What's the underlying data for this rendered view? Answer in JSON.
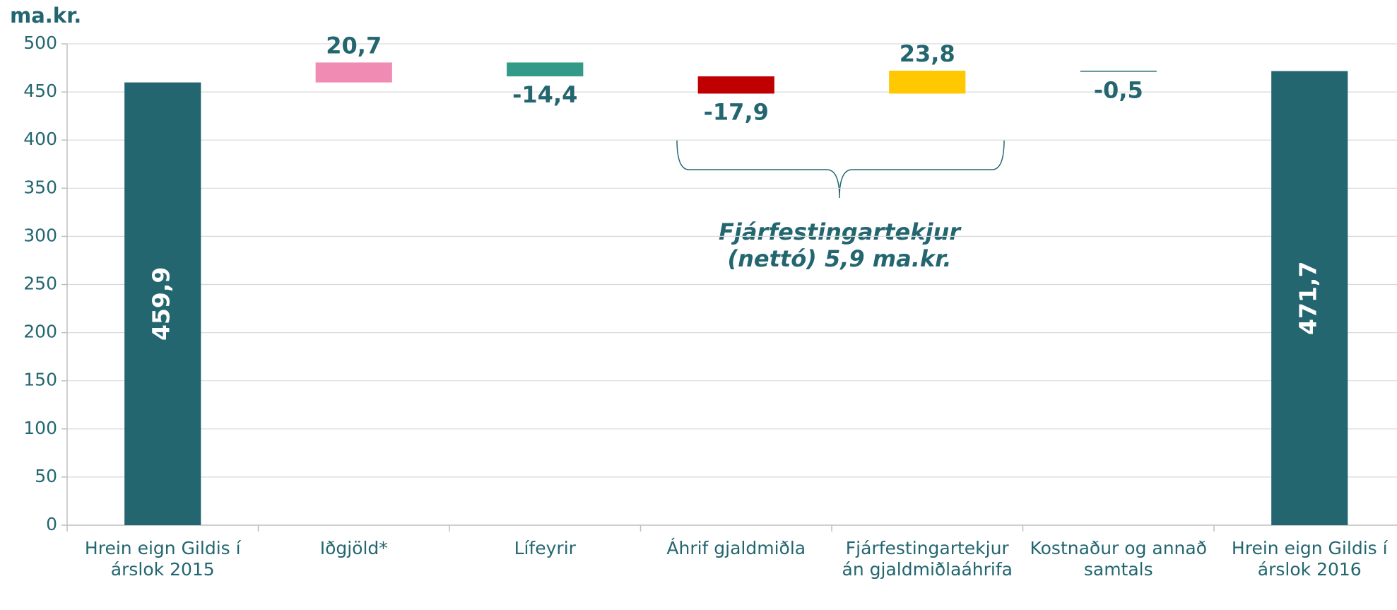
{
  "chart_data": {
    "type": "waterfall",
    "y_axis_label": "ma.kr.",
    "categories": [
      "Hrein eign Gildis í árslok 2015",
      "Iðgjöld*",
      "Lífeyrir",
      "Áhrif gjaldmiðla",
      "Fjárfestingartekjur án gjaldmiðlaáhrifa",
      "Kostnaður og annað samtals",
      "Hrein eign Gildis í árslok 2016"
    ],
    "values": [
      459.9,
      20.7,
      -14.4,
      -17.9,
      23.8,
      -0.5,
      471.7
    ],
    "value_labels": [
      "459,9",
      "20,7",
      "-14,4",
      "-17,9",
      "23,8",
      "-0,5",
      "471,7"
    ],
    "colors": [
      "#236670",
      "#f08cb4",
      "#339988",
      "#c00000",
      "#ffc800",
      "#236670",
      "#236670"
    ],
    "total_bars": [
      0,
      6
    ],
    "annotation": [
      "Fjárfestingartekjur",
      "(nettó) 5,9 ma.kr."
    ],
    "ylim": [
      0,
      500
    ],
    "yticks": [
      0,
      50,
      100,
      150,
      200,
      250,
      300,
      350,
      400,
      450,
      500
    ],
    "grid": true
  }
}
